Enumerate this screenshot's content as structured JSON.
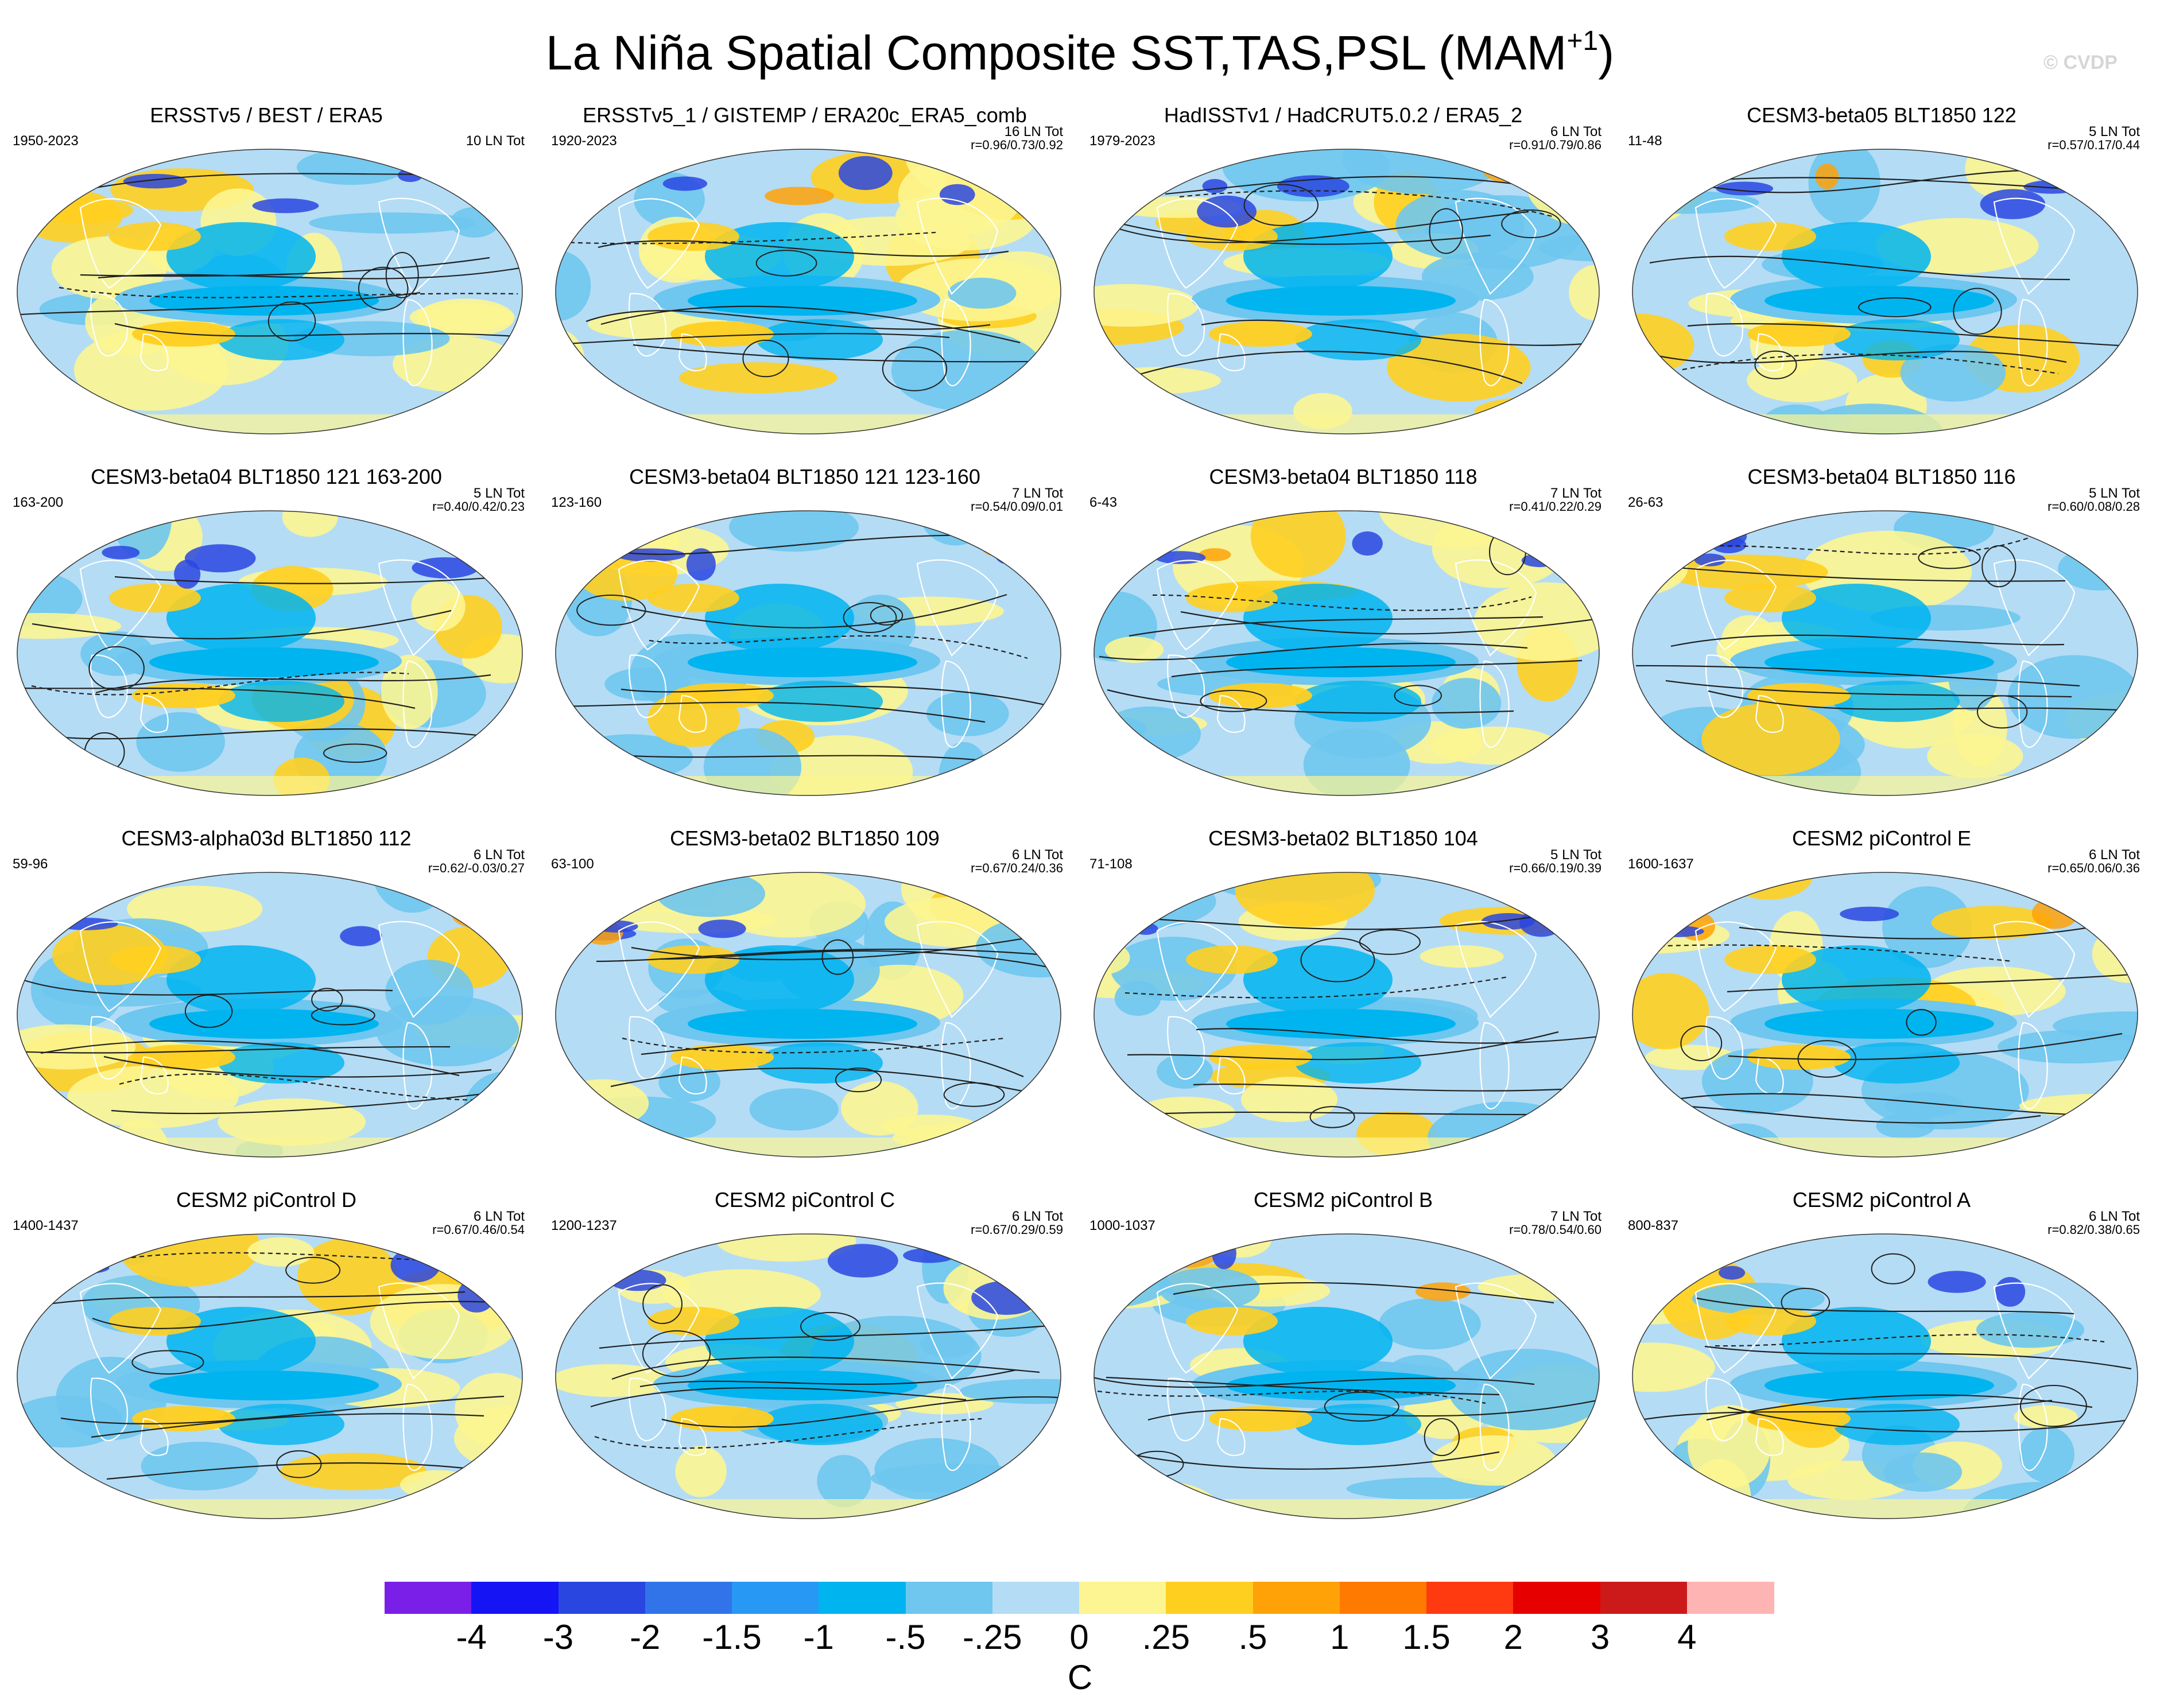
{
  "title": {
    "main": "La Niña Spatial Composite SST,TAS,PSL (MAM",
    "superscript": "+1",
    "close": ")"
  },
  "watermark": "© CVDP",
  "colors": {
    "ocean_cold_strong": "#00b4f0",
    "ocean_cool": "#6fc6ee",
    "ocean_neutral_cool": "#b4dcf5",
    "neutral_warm": "#fcf591",
    "warm": "#ffcf20",
    "warm_strong": "#ffa208",
    "contour_line": "#202020",
    "coastline": "#ffffff"
  },
  "panels": [
    {
      "title": "ERSSTv5 / BEST / ERA5",
      "years": "1950-2023",
      "count": "10 LN Tot",
      "corr": "",
      "variant": 0
    },
    {
      "title": "ERSSTv5_1 / GISTEMP / ERA20c_ERA5_comb",
      "years": "1920-2023",
      "count": "16 LN Tot",
      "corr": "r=0.96/0.73/0.92",
      "variant": 1
    },
    {
      "title": "HadISSTv1 / HadCRUT5.0.2 / ERA5_2",
      "years": "1979-2023",
      "count": "6 LN Tot",
      "corr": "r=0.91/0.79/0.86",
      "variant": 2
    },
    {
      "title": "CESM3-beta05 BLT1850 122",
      "years": "11-48",
      "count": "5 LN Tot",
      "corr": "r=0.57/0.17/0.44",
      "variant": 3
    },
    {
      "title": "CESM3-beta04 BLT1850 121 163-200",
      "years": "163-200",
      "count": "5 LN Tot",
      "corr": "r=0.40/0.42/0.23",
      "variant": 4
    },
    {
      "title": "CESM3-beta04 BLT1850 121 123-160",
      "years": "123-160",
      "count": "7 LN Tot",
      "corr": "r=0.54/0.09/0.01",
      "variant": 5
    },
    {
      "title": "CESM3-beta04 BLT1850 118",
      "years": "6-43",
      "count": "7 LN Tot",
      "corr": "r=0.41/0.22/0.29",
      "variant": 6
    },
    {
      "title": "CESM3-beta04 BLT1850 116",
      "years": "26-63",
      "count": "5 LN Tot",
      "corr": "r=0.60/0.08/0.28",
      "variant": 7
    },
    {
      "title": "CESM3-alpha03d BLT1850 112",
      "years": "59-96",
      "count": "6 LN Tot",
      "corr": "r=0.62/-0.03/0.27",
      "variant": 8
    },
    {
      "title": "CESM3-beta02 BLT1850 109",
      "years": "63-100",
      "count": "6 LN Tot",
      "corr": "r=0.67/0.24/0.36",
      "variant": 9
    },
    {
      "title": "CESM3-beta02 BLT1850 104",
      "years": "71-108",
      "count": "5 LN Tot",
      "corr": "r=0.66/0.19/0.39",
      "variant": 10
    },
    {
      "title": "CESM2 piControl E",
      "years": "1600-1637",
      "count": "6 LN Tot",
      "corr": "r=0.65/0.06/0.36",
      "variant": 11
    },
    {
      "title": "CESM2 piControl D",
      "years": "1400-1437",
      "count": "6 LN Tot",
      "corr": "r=0.67/0.46/0.54",
      "variant": 12
    },
    {
      "title": "CESM2 piControl C",
      "years": "1200-1237",
      "count": "6 LN Tot",
      "corr": "r=0.67/0.29/0.59",
      "variant": 13
    },
    {
      "title": "CESM2 piControl B",
      "years": "1000-1037",
      "count": "7 LN Tot",
      "corr": "r=0.78/0.54/0.60",
      "variant": 14
    },
    {
      "title": "CESM2 piControl A",
      "years": "800-837",
      "count": "6 LN Tot",
      "corr": "r=0.82/0.38/0.65",
      "variant": 15
    }
  ],
  "chart_data": {
    "type": "heatmap",
    "title": "La Niña Spatial Composite SST,TAS,PSL (MAM+1)",
    "projection": "global map (Robinson-like ellipse)",
    "layout": "4x4 grid of maps",
    "fields": [
      "SST",
      "TAS",
      "PSL (contours)"
    ],
    "colorbar": {
      "unit": "C",
      "tick_labels": [
        "-4",
        "-3",
        "-2",
        "-1.5",
        "-1",
        "-.5",
        "-.25",
        "0",
        ".25",
        ".5",
        "1",
        "1.5",
        "2",
        "3",
        "4"
      ],
      "colors": [
        "#7a1fe8",
        "#1414f5",
        "#2a46e0",
        "#3174ea",
        "#2898f5",
        "#00b4f0",
        "#6fc6ee",
        "#b4dcf5",
        "#fcf591",
        "#ffcf20",
        "#ffa208",
        "#ff7a00",
        "#ff3a10",
        "#e60000",
        "#cc1a1a",
        "#ffb4b4"
      ]
    }
  }
}
